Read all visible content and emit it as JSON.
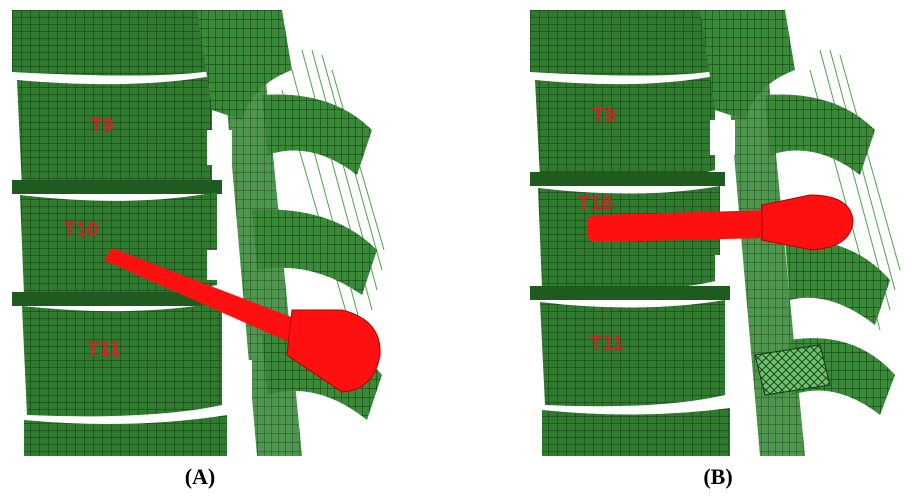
{
  "panels": [
    {
      "caption": "(A)",
      "labels": {
        "top": "T9",
        "middle": "T10",
        "bottom": "T11"
      }
    },
    {
      "caption": "(B)",
      "labels": {
        "top": "T9",
        "middle": "T10",
        "bottom": "T11"
      }
    }
  ],
  "colors": {
    "mesh_fill": "#2f7a2f",
    "mesh_dark": "#123d12",
    "mesh_light": "#58a858",
    "screw": "#ff1010",
    "label": "#d42020"
  }
}
